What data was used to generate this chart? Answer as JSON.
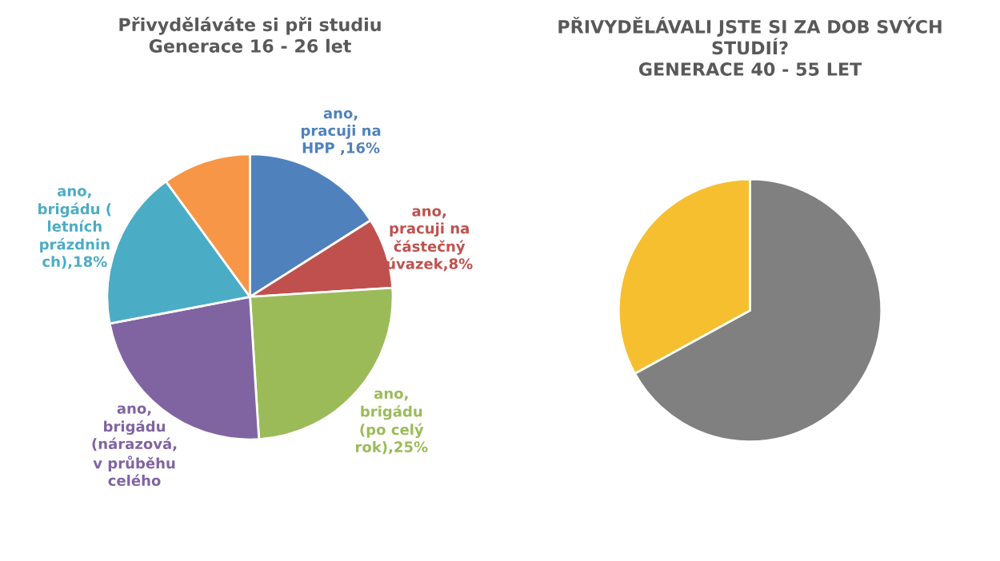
{
  "chart_data": [
    {
      "type": "pie",
      "title": "Přivyděláváte si při studiu\nGenerace 16 - 26 let",
      "categories": [
        "ano,\npracuji na\nHPP ",
        "ano,\npracuji na\nčástečný\núvazek",
        "ano,\nbrigádu\n(po celý\nrok)",
        "ano,\nbrigádu\n(nárazová,\nv průběhu\ncelého",
        "ano,\nbrigádu (\nletních\nprázdnin\nch)",
        null
      ],
      "values": [
        16,
        8,
        25,
        23,
        18,
        10
      ],
      "value_labels": [
        "16%",
        "8%",
        "25%",
        null,
        "18%",
        null
      ],
      "colors": [
        "#4f81bd",
        "#c0504d",
        "#9bbb59",
        "#8064a2",
        "#4bacc6",
        "#f79646"
      ]
    },
    {
      "type": "pie",
      "title": "PŘIVYDĚLÁVALI JSTE SI ZA DOB SVÝCH\nSTUDIÍ?\nGENERACE 40 - 55 LET",
      "categories": [
        null,
        null
      ],
      "values": [
        67,
        33
      ],
      "colors": [
        "#808080",
        "#f5bf2f"
      ]
    }
  ]
}
